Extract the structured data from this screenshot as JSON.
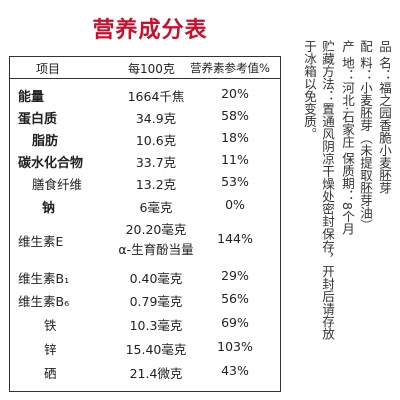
{
  "title": "营养成分表",
  "table": {
    "headers": [
      "项目",
      "每100克",
      "营养素参考值%"
    ],
    "rows": [
      {
        "name": "能量",
        "value": "1664千焦",
        "nrv": "20%",
        "bold": true
      },
      {
        "name": "蛋白质",
        "value": "34.9克",
        "nrv": "58%",
        "bold": true
      },
      {
        "name": "脂肪",
        "value": "10.6克",
        "nrv": "18%",
        "bold": true,
        "indent": true
      },
      {
        "name": "碳水化合物",
        "value": "33.7克",
        "nrv": "11%",
        "bold": true
      },
      {
        "name": "膳食纤维",
        "value": "13.2克",
        "nrv": "53%",
        "bold": false,
        "indent": true
      },
      {
        "name": "钠",
        "value": "6毫克",
        "nrv": "0%",
        "bold": true,
        "indent": true
      },
      {
        "name": "维生素E",
        "value": "20.20毫克",
        "value2": "α-生育酚当量",
        "nrv": "144%",
        "bold": false
      },
      {
        "name": "维生素B₁",
        "value": "0.40毫克",
        "nrv": "29%",
        "bold": false
      },
      {
        "name": "维生素B₆",
        "value": "0.79毫克",
        "nrv": "56%",
        "bold": false
      },
      {
        "name": "铁",
        "value": "10.3毫克",
        "nrv": "69%",
        "bold": false,
        "indent": true
      },
      {
        "name": "锌",
        "value": "15.40毫克",
        "nrv": "103%",
        "bold": false,
        "indent": true
      },
      {
        "name": "硒",
        "value": "21.4微克",
        "nrv": "43%",
        "bold": false,
        "indent": true
      }
    ]
  },
  "product_info": {
    "name_label": "品  名：",
    "name_value": "福之园香脆小麦胚芽",
    "ingredients_label": "配  料：",
    "ingredients_value": "小麦胚芽（未提取胚芽油）",
    "origin_label": "产  地：",
    "origin_value": "河北·石家庄",
    "shelf_life_label": "保质期：",
    "shelf_life_value": "8个月",
    "storage_label": "贮藏方法：",
    "storage_value_1": "置通风阴凉干燥处密封保存，开封后请存放",
    "storage_value_2": "于冰箱以免变质。"
  }
}
